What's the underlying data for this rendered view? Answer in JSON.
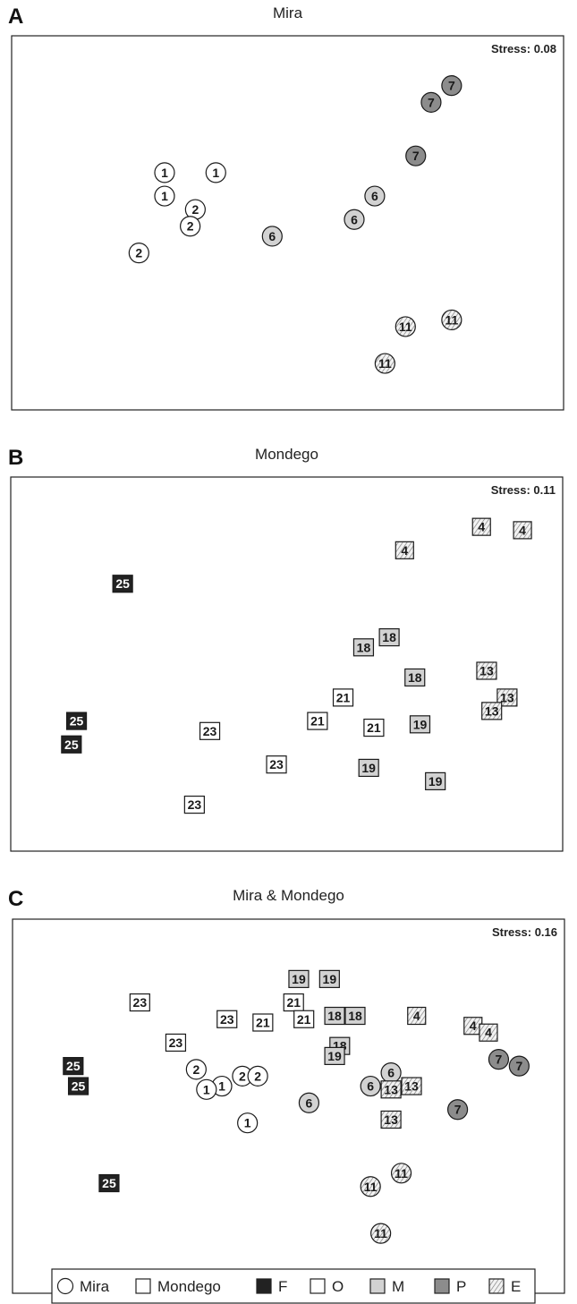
{
  "legend": {
    "items": [
      {
        "label": "Mira",
        "shape": "circle",
        "fill": "none"
      },
      {
        "label": "Mondego",
        "shape": "square",
        "fill": "none"
      },
      {
        "label": "F",
        "shape": "square",
        "fill": "#222222"
      },
      {
        "label": "O",
        "shape": "square",
        "fill": "#ffffff"
      },
      {
        "label": "M",
        "shape": "square",
        "fill": "#d2d2d2"
      },
      {
        "label": "P",
        "shape": "square",
        "fill": "#8c8c8c"
      },
      {
        "label": "E",
        "shape": "square",
        "fill": "hatch"
      }
    ]
  },
  "colors": {
    "F": "#222222",
    "O": "#ffffff",
    "M": "#d2d2d2",
    "P": "#8c8c8c",
    "E": "hatch",
    "outline": "#1a1a1a"
  },
  "chart_data": [
    {
      "type": "scatter",
      "panel_letter": "A",
      "title": "Mira",
      "annotation": "Stress: 0.08",
      "xlim": [
        0,
        100
      ],
      "ylim": [
        0,
        100
      ],
      "points": [
        {
          "label": "7",
          "x": 82,
          "y": 91,
          "site": "Mira",
          "group": "P"
        },
        {
          "label": "7",
          "x": 78,
          "y": 86,
          "site": "Mira",
          "group": "P"
        },
        {
          "label": "7",
          "x": 75,
          "y": 70,
          "site": "Mira",
          "group": "P"
        },
        {
          "label": "1",
          "x": 26,
          "y": 65,
          "site": "Mira",
          "group": "O"
        },
        {
          "label": "1",
          "x": 36,
          "y": 65,
          "site": "Mira",
          "group": "O"
        },
        {
          "label": "1",
          "x": 26,
          "y": 58,
          "site": "Mira",
          "group": "O"
        },
        {
          "label": "2",
          "x": 32,
          "y": 54,
          "site": "Mira",
          "group": "O"
        },
        {
          "label": "2",
          "x": 31,
          "y": 49,
          "site": "Mira",
          "group": "O"
        },
        {
          "label": "2",
          "x": 21,
          "y": 41,
          "site": "Mira",
          "group": "O"
        },
        {
          "label": "6",
          "x": 67,
          "y": 58,
          "site": "Mira",
          "group": "M"
        },
        {
          "label": "6",
          "x": 63,
          "y": 51,
          "site": "Mira",
          "group": "M"
        },
        {
          "label": "6",
          "x": 47,
          "y": 46,
          "site": "Mira",
          "group": "M"
        },
        {
          "label": "11",
          "x": 82,
          "y": 21,
          "site": "Mira",
          "group": "E"
        },
        {
          "label": "11",
          "x": 73,
          "y": 19,
          "site": "Mira",
          "group": "E"
        },
        {
          "label": "11",
          "x": 69,
          "y": 8,
          "site": "Mira",
          "group": "E"
        }
      ]
    },
    {
      "type": "scatter",
      "panel_letter": "B",
      "title": "Mondego",
      "annotation": "Stress: 0.11",
      "xlim": [
        0,
        100
      ],
      "ylim": [
        0,
        100
      ],
      "points": [
        {
          "label": "4",
          "x": 88,
          "y": 91,
          "site": "Mondego",
          "group": "E"
        },
        {
          "label": "4",
          "x": 96,
          "y": 90,
          "site": "Mondego",
          "group": "E"
        },
        {
          "label": "4",
          "x": 73,
          "y": 84,
          "site": "Mondego",
          "group": "E"
        },
        {
          "label": "25",
          "x": 18,
          "y": 74,
          "site": "Mondego",
          "group": "F"
        },
        {
          "label": "18",
          "x": 70,
          "y": 58,
          "site": "Mondego",
          "group": "M"
        },
        {
          "label": "18",
          "x": 65,
          "y": 55,
          "site": "Mondego",
          "group": "M"
        },
        {
          "label": "18",
          "x": 75,
          "y": 46,
          "site": "Mondego",
          "group": "M"
        },
        {
          "label": "13",
          "x": 89,
          "y": 48,
          "site": "Mondego",
          "group": "E"
        },
        {
          "label": "13",
          "x": 93,
          "y": 40,
          "site": "Mondego",
          "group": "E"
        },
        {
          "label": "13",
          "x": 90,
          "y": 36,
          "site": "Mondego",
          "group": "E"
        },
        {
          "label": "21",
          "x": 61,
          "y": 40,
          "site": "Mondego",
          "group": "O"
        },
        {
          "label": "21",
          "x": 56,
          "y": 33,
          "site": "Mondego",
          "group": "O"
        },
        {
          "label": "21",
          "x": 67,
          "y": 31,
          "site": "Mondego",
          "group": "O"
        },
        {
          "label": "19",
          "x": 76,
          "y": 32,
          "site": "Mondego",
          "group": "M"
        },
        {
          "label": "19",
          "x": 66,
          "y": 19,
          "site": "Mondego",
          "group": "M"
        },
        {
          "label": "19",
          "x": 79,
          "y": 15,
          "site": "Mondego",
          "group": "M"
        },
        {
          "label": "25",
          "x": 9,
          "y": 33,
          "site": "Mondego",
          "group": "F"
        },
        {
          "label": "25",
          "x": 8,
          "y": 26,
          "site": "Mondego",
          "group": "F"
        },
        {
          "label": "23",
          "x": 35,
          "y": 30,
          "site": "Mondego",
          "group": "O"
        },
        {
          "label": "23",
          "x": 48,
          "y": 20,
          "site": "Mondego",
          "group": "O"
        },
        {
          "label": "23",
          "x": 32,
          "y": 8,
          "site": "Mondego",
          "group": "O"
        }
      ]
    },
    {
      "type": "scatter",
      "panel_letter": "C",
      "title": "Mira & Mondego",
      "annotation": "Stress: 0.16",
      "xlim": [
        0,
        100
      ],
      "ylim": [
        0,
        100
      ],
      "points": [
        {
          "label": "19",
          "x": 52,
          "y": 88,
          "site": "Mondego",
          "group": "M"
        },
        {
          "label": "19",
          "x": 58,
          "y": 88,
          "site": "Mondego",
          "group": "M"
        },
        {
          "label": "23",
          "x": 21,
          "y": 81,
          "site": "Mondego",
          "group": "O"
        },
        {
          "label": "21",
          "x": 51,
          "y": 81,
          "site": "Mondego",
          "group": "O"
        },
        {
          "label": "23",
          "x": 38,
          "y": 76,
          "site": "Mondego",
          "group": "O"
        },
        {
          "label": "21",
          "x": 45,
          "y": 75,
          "site": "Mondego",
          "group": "O"
        },
        {
          "label": "21",
          "x": 53,
          "y": 76,
          "site": "Mondego",
          "group": "O"
        },
        {
          "label": "18",
          "x": 59,
          "y": 77,
          "site": "Mondego",
          "group": "M"
        },
        {
          "label": "18",
          "x": 63,
          "y": 77,
          "site": "Mondego",
          "group": "M"
        },
        {
          "label": "4",
          "x": 75,
          "y": 77,
          "site": "Mondego",
          "group": "E"
        },
        {
          "label": "4",
          "x": 86,
          "y": 74,
          "site": "Mondego",
          "group": "E"
        },
        {
          "label": "4",
          "x": 89,
          "y": 72,
          "site": "Mondego",
          "group": "E"
        },
        {
          "label": "23",
          "x": 28,
          "y": 69,
          "site": "Mondego",
          "group": "O"
        },
        {
          "label": "18",
          "x": 60,
          "y": 68,
          "site": "Mondego",
          "group": "M"
        },
        {
          "label": "19",
          "x": 59,
          "y": 65,
          "site": "Mondego",
          "group": "M"
        },
        {
          "label": "25",
          "x": 8,
          "y": 62,
          "site": "Mondego",
          "group": "F"
        },
        {
          "label": "25",
          "x": 9,
          "y": 56,
          "site": "Mondego",
          "group": "F"
        },
        {
          "label": "25",
          "x": 15,
          "y": 27,
          "site": "Mondego",
          "group": "F"
        },
        {
          "label": "7",
          "x": 91,
          "y": 64,
          "site": "Mira",
          "group": "P"
        },
        {
          "label": "7",
          "x": 95,
          "y": 62,
          "site": "Mira",
          "group": "P"
        },
        {
          "label": "7",
          "x": 83,
          "y": 49,
          "site": "Mira",
          "group": "P"
        },
        {
          "label": "2",
          "x": 32,
          "y": 61,
          "site": "Mira",
          "group": "O"
        },
        {
          "label": "2",
          "x": 41,
          "y": 59,
          "site": "Mira",
          "group": "O"
        },
        {
          "label": "2",
          "x": 44,
          "y": 59,
          "site": "Mira",
          "group": "O"
        },
        {
          "label": "1",
          "x": 37,
          "y": 56,
          "site": "Mira",
          "group": "O"
        },
        {
          "label": "1",
          "x": 34,
          "y": 55,
          "site": "Mira",
          "group": "O"
        },
        {
          "label": "1",
          "x": 42,
          "y": 45,
          "site": "Mira",
          "group": "O"
        },
        {
          "label": "6",
          "x": 70,
          "y": 60,
          "site": "Mira",
          "group": "M"
        },
        {
          "label": "6",
          "x": 66,
          "y": 56,
          "site": "Mira",
          "group": "M"
        },
        {
          "label": "6",
          "x": 54,
          "y": 51,
          "site": "Mira",
          "group": "M"
        },
        {
          "label": "13",
          "x": 70,
          "y": 55,
          "site": "Mondego",
          "group": "E"
        },
        {
          "label": "13",
          "x": 74,
          "y": 56,
          "site": "Mondego",
          "group": "E"
        },
        {
          "label": "13",
          "x": 70,
          "y": 46,
          "site": "Mondego",
          "group": "E"
        },
        {
          "label": "11",
          "x": 72,
          "y": 30,
          "site": "Mira",
          "group": "E"
        },
        {
          "label": "11",
          "x": 66,
          "y": 26,
          "site": "Mira",
          "group": "E"
        },
        {
          "label": "11",
          "x": 68,
          "y": 12,
          "site": "Mira",
          "group": "E"
        }
      ]
    }
  ]
}
